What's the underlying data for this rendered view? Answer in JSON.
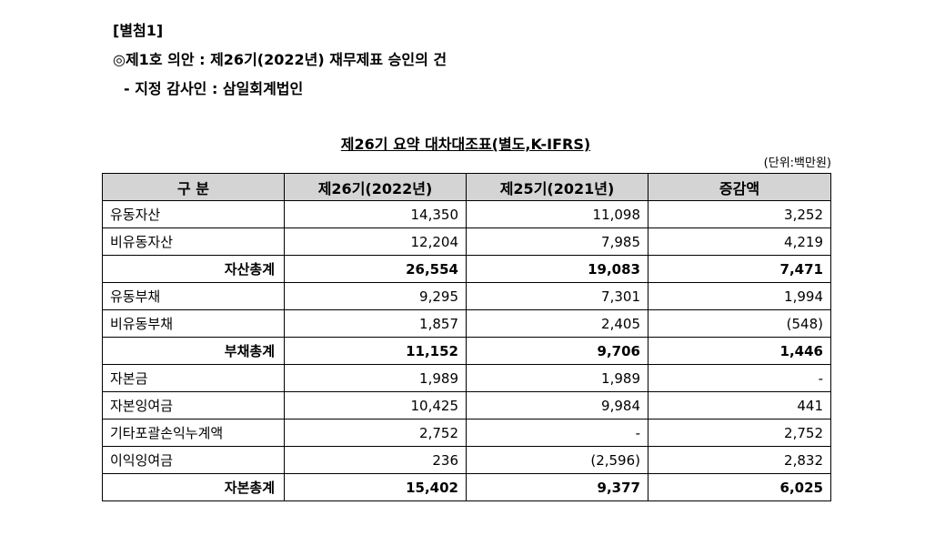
{
  "header": {
    "attachment": "[별첨1]",
    "agenda": "◎제1호 의안 : 제26기(2022년) 재무제표 승인의 건",
    "auditor": "- 지정 감사인 : 삼일회계법인"
  },
  "table": {
    "title": "제26기 요약 대차대조표(별도,K-IFRS)",
    "unit": "(단위:백만원)",
    "columns": [
      "구 분",
      "제26기(2022년)",
      "제25기(2021년)",
      "증감액"
    ],
    "rows": [
      {
        "label": "유동자산",
        "fy2022": "14,350",
        "fy2021": "11,098",
        "change": "3,252",
        "total": false
      },
      {
        "label": "비유동자산",
        "fy2022": "12,204",
        "fy2021": "7,985",
        "change": "4,219",
        "total": false
      },
      {
        "label": "자산총계",
        "fy2022": "26,554",
        "fy2021": "19,083",
        "change": "7,471",
        "total": true
      },
      {
        "label": "유동부채",
        "fy2022": "9,295",
        "fy2021": "7,301",
        "change": "1,994",
        "total": false
      },
      {
        "label": "비유동부채",
        "fy2022": "1,857",
        "fy2021": "2,405",
        "change": "(548)",
        "total": false
      },
      {
        "label": "부채총계",
        "fy2022": "11,152",
        "fy2021": "9,706",
        "change": "1,446",
        "total": true
      },
      {
        "label": "자본금",
        "fy2022": "1,989",
        "fy2021": "1,989",
        "change": "-",
        "total": false
      },
      {
        "label": "자본잉여금",
        "fy2022": "10,425",
        "fy2021": "9,984",
        "change": "441",
        "total": false
      },
      {
        "label": "기타포괄손익누계액",
        "fy2022": "2,752",
        "fy2021": "-",
        "change": "2,752",
        "total": false
      },
      {
        "label": "이익잉여금",
        "fy2022": "236",
        "fy2021": "(2,596)",
        "change": "2,832",
        "total": false
      },
      {
        "label": "자본총계",
        "fy2022": "15,402",
        "fy2021": "9,377",
        "change": "6,025",
        "total": true
      }
    ]
  }
}
